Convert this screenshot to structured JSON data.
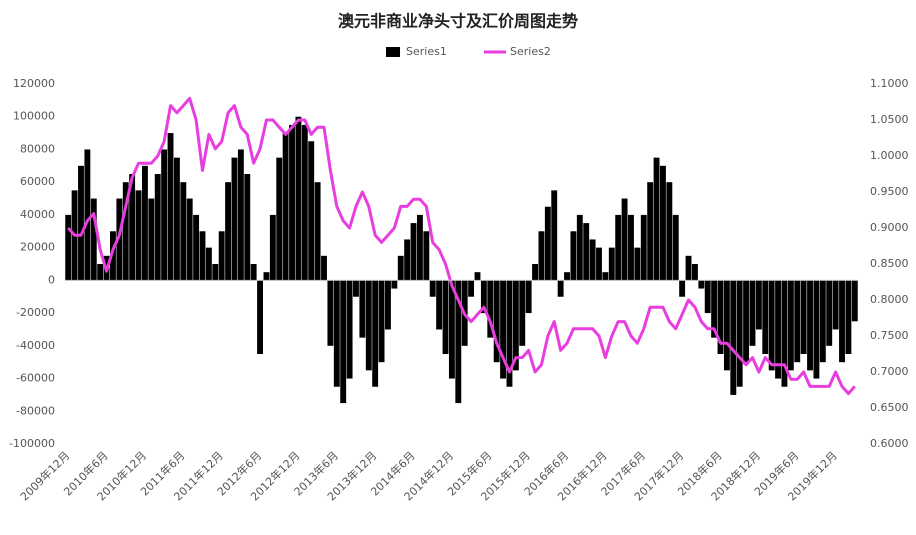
{
  "chart_data": {
    "type": "bar-line",
    "title": "澳元非商业净头寸及汇价周图走势",
    "categories": [
      "2009年12月",
      null,
      null,
      null,
      null,
      null,
      "2010年6月",
      null,
      null,
      null,
      null,
      null,
      "2010年12月",
      null,
      null,
      null,
      null,
      null,
      "2011年6月",
      null,
      null,
      null,
      null,
      null,
      "2011年12月",
      null,
      null,
      null,
      null,
      null,
      "2012年6月",
      null,
      null,
      null,
      null,
      null,
      "2012年12月",
      null,
      null,
      null,
      null,
      null,
      "2013年6月",
      null,
      null,
      null,
      null,
      null,
      "2013年12月",
      null,
      null,
      null,
      null,
      null,
      "2014年6月",
      null,
      null,
      null,
      null,
      null,
      "2014年12月",
      null,
      null,
      null,
      null,
      null,
      "2015年6月",
      null,
      null,
      null,
      null,
      null,
      "2015年12月",
      null,
      null,
      null,
      null,
      null,
      "2016年6月",
      null,
      null,
      null,
      null,
      null,
      "2016年12月",
      null,
      null,
      null,
      null,
      null,
      "2017年6月",
      null,
      null,
      null,
      null,
      null,
      "2017年12月",
      null,
      null,
      null,
      null,
      null,
      "2018年6月",
      null,
      null,
      null,
      null,
      null,
      "2018年12月",
      null,
      null,
      null,
      null,
      null,
      "2019年6月",
      null,
      null,
      null,
      null,
      null,
      "2019年12月",
      null,
      null,
      null
    ],
    "series": [
      {
        "name": "Series1",
        "color": "#000000",
        "axis": "y",
        "values": [
          40000,
          55000,
          70000,
          80000,
          50000,
          10000,
          15000,
          30000,
          50000,
          60000,
          65000,
          55000,
          70000,
          50000,
          65000,
          80000,
          90000,
          75000,
          60000,
          50000,
          40000,
          30000,
          20000,
          10000,
          30000,
          60000,
          75000,
          80000,
          65000,
          10000,
          -45000,
          5000,
          40000,
          75000,
          90000,
          95000,
          100000,
          95000,
          85000,
          60000,
          15000,
          -40000,
          -65000,
          -75000,
          -60000,
          -10000,
          -35000,
          -55000,
          -65000,
          -50000,
          -30000,
          -5000,
          15000,
          25000,
          35000,
          40000,
          30000,
          -10000,
          -30000,
          -45000,
          -60000,
          -75000,
          -40000,
          -10000,
          5000,
          -20000,
          -35000,
          -50000,
          -60000,
          -65000,
          -55000,
          -40000,
          -20000,
          10000,
          30000,
          45000,
          55000,
          -10000,
          5000,
          30000,
          40000,
          35000,
          25000,
          20000,
          5000,
          20000,
          40000,
          50000,
          40000,
          20000,
          40000,
          60000,
          75000,
          70000,
          60000,
          40000,
          -10000,
          15000,
          10000,
          -5000,
          -20000,
          -35000,
          -45000,
          -55000,
          -70000,
          -65000,
          -50000,
          -40000,
          -30000,
          -45000,
          -55000,
          -60000,
          -65000,
          -55000,
          -50000,
          -45000,
          -55000,
          -60000,
          -50000,
          -40000,
          -30000,
          -50000,
          -45000,
          -25000
        ]
      },
      {
        "name": "Series2",
        "color": "#e83ee0",
        "axis": "y2",
        "values": [
          0.9,
          0.89,
          0.89,
          0.91,
          0.92,
          0.87,
          0.84,
          0.87,
          0.89,
          0.93,
          0.97,
          0.99,
          0.99,
          0.99,
          1.0,
          1.02,
          1.07,
          1.06,
          1.07,
          1.08,
          1.05,
          0.98,
          1.03,
          1.01,
          1.02,
          1.06,
          1.07,
          1.04,
          1.03,
          0.99,
          1.01,
          1.05,
          1.05,
          1.04,
          1.03,
          1.04,
          1.05,
          1.05,
          1.03,
          1.04,
          1.04,
          0.98,
          0.93,
          0.91,
          0.9,
          0.93,
          0.95,
          0.93,
          0.89,
          0.88,
          0.89,
          0.9,
          0.93,
          0.93,
          0.94,
          0.94,
          0.93,
          0.88,
          0.87,
          0.85,
          0.82,
          0.8,
          0.78,
          0.77,
          0.78,
          0.79,
          0.77,
          0.74,
          0.72,
          0.7,
          0.72,
          0.72,
          0.73,
          0.7,
          0.71,
          0.75,
          0.77,
          0.73,
          0.74,
          0.76,
          0.76,
          0.76,
          0.76,
          0.75,
          0.72,
          0.75,
          0.77,
          0.77,
          0.75,
          0.74,
          0.76,
          0.79,
          0.79,
          0.79,
          0.77,
          0.76,
          0.78,
          0.8,
          0.79,
          0.77,
          0.76,
          0.76,
          0.74,
          0.74,
          0.73,
          0.72,
          0.71,
          0.72,
          0.7,
          0.72,
          0.71,
          0.71,
          0.71,
          0.69,
          0.69,
          0.7,
          0.68,
          0.68,
          0.68,
          0.68,
          0.7,
          0.68,
          0.67,
          0.68
        ]
      }
    ],
    "ylim": [
      -100000,
      120000
    ],
    "yticks": [
      -100000,
      -80000,
      -60000,
      -40000,
      -20000,
      0,
      20000,
      40000,
      60000,
      80000,
      100000,
      120000
    ],
    "y2lim": [
      0.6,
      1.1
    ],
    "y2ticks": [
      {
        "value": 0.6,
        "label": "0.6000"
      },
      {
        "value": 0.65,
        "label": "0.6500"
      },
      {
        "value": 0.7,
        "label": "0.7000"
      },
      {
        "value": 0.75,
        "label": "0.7500"
      },
      {
        "value": 0.8,
        "label": "0.8000"
      },
      {
        "value": 0.85,
        "label": "0.8500"
      },
      {
        "value": 0.9,
        "label": "0.9000"
      },
      {
        "value": 0.95,
        "label": "0.9500"
      },
      {
        "value": 1.0,
        "label": "1.0000"
      },
      {
        "value": 1.05,
        "label": "1.0500"
      },
      {
        "value": 1.1,
        "label": "1.1000"
      }
    ],
    "legend": "top"
  }
}
